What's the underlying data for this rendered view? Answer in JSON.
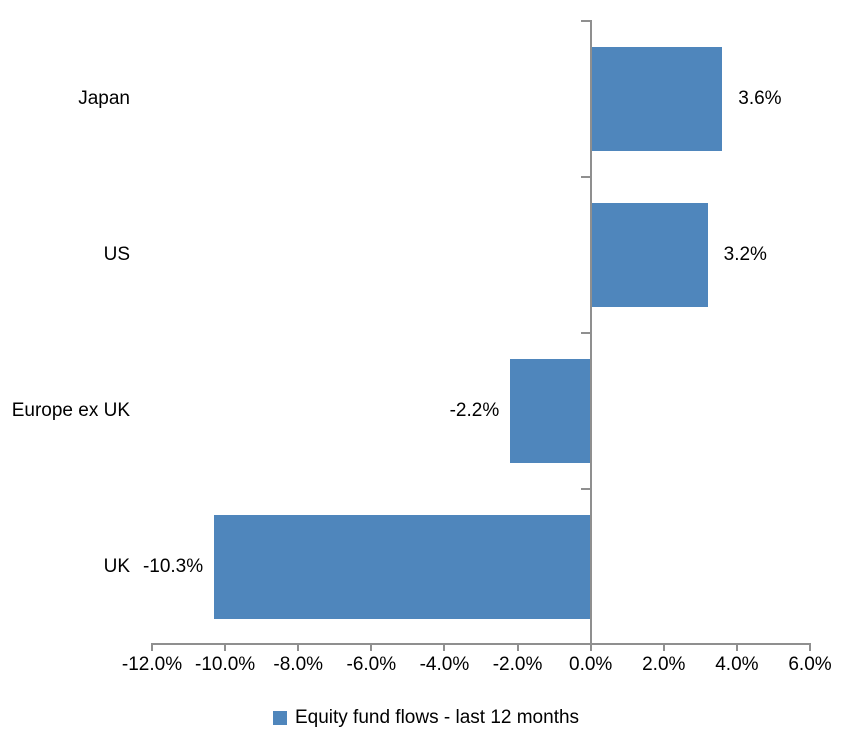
{
  "chart_data": {
    "type": "bar",
    "orientation": "horizontal",
    "categories": [
      "Japan",
      "US",
      "Europe ex UK",
      "UK"
    ],
    "values": [
      3.6,
      3.2,
      -2.2,
      -10.3
    ],
    "data_labels": [
      "3.6%",
      "3.2%",
      "-2.2%",
      "-10.3%"
    ],
    "series": [
      {
        "name": "Equity fund flows - last 12 months",
        "values": [
          3.6,
          3.2,
          -2.2,
          -10.3
        ]
      }
    ],
    "title": "",
    "xlabel": "",
    "ylabel": "",
    "xlim": [
      -12,
      6
    ],
    "x_ticks": [
      -12,
      -10,
      -8,
      -6,
      -4,
      -2,
      0,
      2,
      4,
      6
    ],
    "x_tick_labels": [
      "-12.0%",
      "-10.0%",
      "-8.0%",
      "-6.0%",
      "-4.0%",
      "-2.0%",
      "0.0%",
      "2.0%",
      "4.0%",
      "6.0%"
    ],
    "grid": false,
    "legend_position": "bottom",
    "colors": {
      "bar": "#4F86BC",
      "axis": "#8F8F8F",
      "text": "#000000",
      "background": "#FFFFFF"
    }
  },
  "legend": {
    "label": "Equity fund flows - last 12 months",
    "swatch_color": "#4F86BC"
  }
}
